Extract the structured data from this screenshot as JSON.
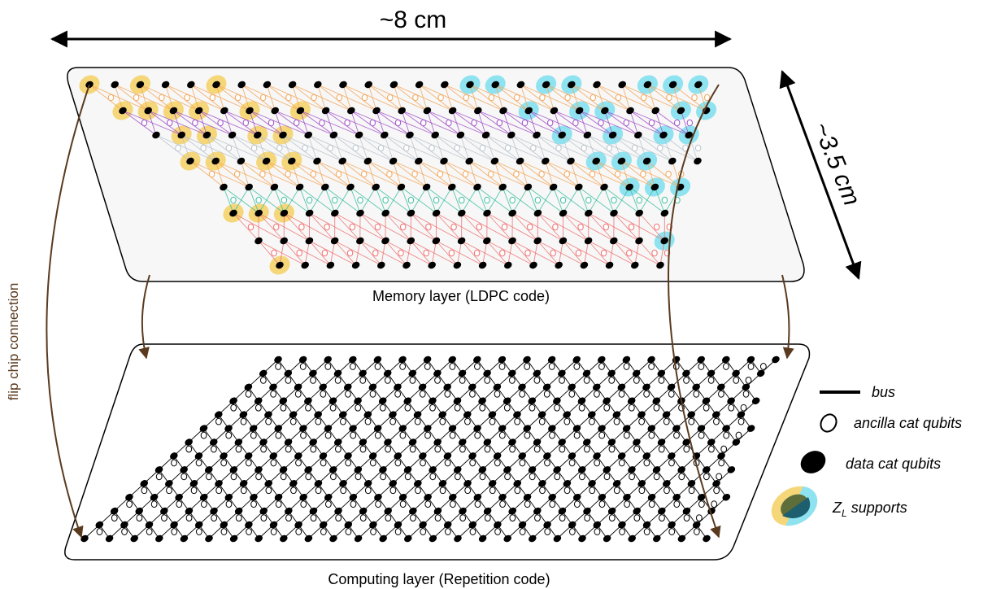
{
  "dimensions": {
    "width_label": "~8 cm",
    "depth_label": "~3.5 cm"
  },
  "layers": {
    "memory_label": "Memory layer (LDPC code)",
    "computing_label": "Computing layer (Repetition code)"
  },
  "connection_label": "flip chip connection",
  "legend": {
    "bus": "bus",
    "ancilla": "ancilla cat qubits",
    "data": "data cat qubits",
    "support_prefix": "Z",
    "support_sub": "L",
    "support_suffix": " supports"
  },
  "colors": {
    "yellow_support": "#f5d77a",
    "cyan_support": "#8fe3f0",
    "data_qubit": "#000000",
    "connection_arrow": "#5a3a1e",
    "edge_orange": "#f4a65a",
    "edge_purple": "#a14fc9",
    "edge_gray": "#b9c3cc",
    "edge_teal": "#3cbfa0",
    "edge_red": "#f07070"
  }
}
